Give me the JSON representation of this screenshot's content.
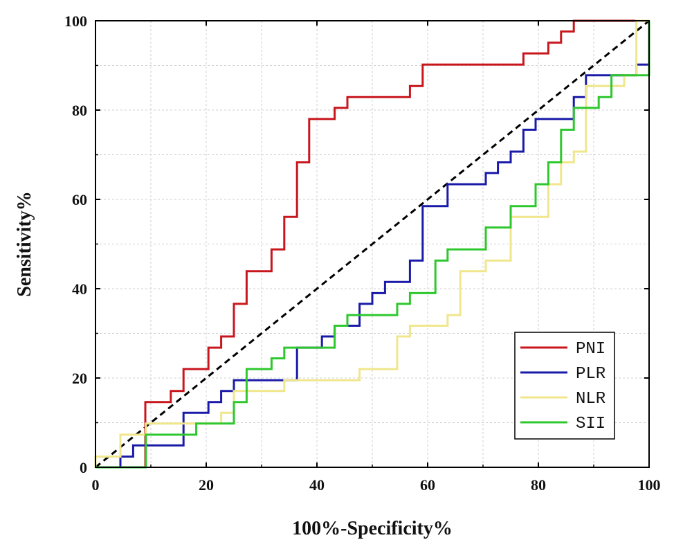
{
  "chart_data": {
    "type": "line",
    "title": "",
    "xlabel": "100%-Specificity%",
    "ylabel": "Sensitivity%",
    "xlim": [
      0,
      100
    ],
    "ylim": [
      0,
      100
    ],
    "xticks": [
      0,
      20,
      40,
      60,
      80,
      100
    ],
    "yticks": [
      0,
      20,
      40,
      60,
      80,
      100
    ],
    "grid": true,
    "legend_position": "bottom-right",
    "reference_line": {
      "style": "dashed",
      "color": "#000000",
      "points": [
        [
          0,
          0
        ],
        [
          100,
          100
        ]
      ]
    },
    "series": [
      {
        "name": "PNI",
        "color": "#c8161d",
        "points": [
          [
            0,
            0
          ],
          [
            9,
            0
          ],
          [
            9,
            14.6
          ],
          [
            13.6,
            14.6
          ],
          [
            13.6,
            17.1
          ],
          [
            15.9,
            17.1
          ],
          [
            15.9,
            22
          ],
          [
            20.4,
            22
          ],
          [
            20.4,
            26.8
          ],
          [
            22.7,
            26.8
          ],
          [
            22.7,
            29.3
          ],
          [
            25,
            29.3
          ],
          [
            25,
            36.6
          ],
          [
            27.3,
            36.6
          ],
          [
            27.3,
            43.9
          ],
          [
            31.8,
            43.9
          ],
          [
            31.8,
            48.8
          ],
          [
            34.1,
            48.8
          ],
          [
            34.1,
            56.1
          ],
          [
            36.4,
            56.1
          ],
          [
            36.4,
            68.3
          ],
          [
            38.6,
            68.3
          ],
          [
            38.6,
            78
          ],
          [
            43.2,
            78
          ],
          [
            43.2,
            80.5
          ],
          [
            45.5,
            80.5
          ],
          [
            45.5,
            82.9
          ],
          [
            56.8,
            82.9
          ],
          [
            56.8,
            85.4
          ],
          [
            59.1,
            85.4
          ],
          [
            59.1,
            90.2
          ],
          [
            77.3,
            90.2
          ],
          [
            77.3,
            92.7
          ],
          [
            81.8,
            92.7
          ],
          [
            81.8,
            95.1
          ],
          [
            84.1,
            95.1
          ],
          [
            84.1,
            97.6
          ],
          [
            86.4,
            97.6
          ],
          [
            86.4,
            100
          ],
          [
            100,
            100
          ]
        ]
      },
      {
        "name": "PLR",
        "color": "#1a1aa8",
        "points": [
          [
            0,
            0
          ],
          [
            4.5,
            0
          ],
          [
            4.5,
            2.4
          ],
          [
            6.8,
            2.4
          ],
          [
            6.8,
            4.9
          ],
          [
            15.9,
            4.9
          ],
          [
            15.9,
            12.2
          ],
          [
            20.4,
            12.2
          ],
          [
            20.4,
            14.6
          ],
          [
            22.7,
            14.6
          ],
          [
            22.7,
            17.1
          ],
          [
            25,
            17.1
          ],
          [
            25,
            19.5
          ],
          [
            36.4,
            19.5
          ],
          [
            36.4,
            26.8
          ],
          [
            40.9,
            26.8
          ],
          [
            40.9,
            29.3
          ],
          [
            43.2,
            29.3
          ],
          [
            43.2,
            31.7
          ],
          [
            47.7,
            31.7
          ],
          [
            47.7,
            36.6
          ],
          [
            50,
            36.6
          ],
          [
            50,
            39
          ],
          [
            52.3,
            39
          ],
          [
            52.3,
            41.5
          ],
          [
            56.8,
            41.5
          ],
          [
            56.8,
            46.3
          ],
          [
            59.1,
            46.3
          ],
          [
            59.1,
            58.5
          ],
          [
            63.6,
            58.5
          ],
          [
            63.6,
            63.4
          ],
          [
            70.5,
            63.4
          ],
          [
            70.5,
            65.9
          ],
          [
            72.7,
            65.9
          ],
          [
            72.7,
            68.3
          ],
          [
            75,
            68.3
          ],
          [
            75,
            70.7
          ],
          [
            77.3,
            70.7
          ],
          [
            77.3,
            75.6
          ],
          [
            79.5,
            75.6
          ],
          [
            79.5,
            78
          ],
          [
            86.4,
            78
          ],
          [
            86.4,
            82.9
          ],
          [
            88.6,
            82.9
          ],
          [
            88.6,
            87.8
          ],
          [
            97.7,
            87.8
          ],
          [
            97.7,
            90.2
          ],
          [
            100,
            90.2
          ],
          [
            100,
            100
          ]
        ]
      },
      {
        "name": "NLR",
        "color": "#f0e68c",
        "points": [
          [
            0,
            0
          ],
          [
            0,
            2.4
          ],
          [
            4.5,
            2.4
          ],
          [
            4.5,
            7.3
          ],
          [
            9.1,
            7.3
          ],
          [
            9.1,
            9.8
          ],
          [
            22.7,
            9.8
          ],
          [
            22.7,
            12.2
          ],
          [
            25,
            12.2
          ],
          [
            25,
            17.1
          ],
          [
            34.1,
            17.1
          ],
          [
            34.1,
            19.5
          ],
          [
            47.7,
            19.5
          ],
          [
            47.7,
            22
          ],
          [
            54.5,
            22
          ],
          [
            54.5,
            29.3
          ],
          [
            56.8,
            29.3
          ],
          [
            56.8,
            31.7
          ],
          [
            63.6,
            31.7
          ],
          [
            63.6,
            34.1
          ],
          [
            65.9,
            34.1
          ],
          [
            65.9,
            43.9
          ],
          [
            70.5,
            43.9
          ],
          [
            70.5,
            46.3
          ],
          [
            75,
            46.3
          ],
          [
            75,
            56.1
          ],
          [
            81.8,
            56.1
          ],
          [
            81.8,
            63.4
          ],
          [
            84.1,
            63.4
          ],
          [
            84.1,
            68.3
          ],
          [
            86.4,
            68.3
          ],
          [
            86.4,
            70.7
          ],
          [
            88.6,
            70.7
          ],
          [
            88.6,
            85.4
          ],
          [
            95.5,
            85.4
          ],
          [
            95.5,
            87.8
          ],
          [
            97.7,
            87.8
          ],
          [
            97.7,
            100
          ],
          [
            100,
            100
          ]
        ]
      },
      {
        "name": "SII",
        "color": "#2ec82e",
        "points": [
          [
            0,
            0
          ],
          [
            9.1,
            0
          ],
          [
            9.1,
            7.3
          ],
          [
            18.2,
            7.3
          ],
          [
            18.2,
            9.8
          ],
          [
            25,
            9.8
          ],
          [
            25,
            14.6
          ],
          [
            27.3,
            14.6
          ],
          [
            27.3,
            22
          ],
          [
            31.8,
            22
          ],
          [
            31.8,
            24.4
          ],
          [
            34.1,
            24.4
          ],
          [
            34.1,
            26.8
          ],
          [
            43.2,
            26.8
          ],
          [
            43.2,
            31.7
          ],
          [
            45.5,
            31.7
          ],
          [
            45.5,
            34.1
          ],
          [
            54.5,
            34.1
          ],
          [
            54.5,
            36.6
          ],
          [
            56.8,
            36.6
          ],
          [
            56.8,
            39
          ],
          [
            61.4,
            39
          ],
          [
            61.4,
            46.3
          ],
          [
            63.6,
            46.3
          ],
          [
            63.6,
            48.8
          ],
          [
            70.5,
            48.8
          ],
          [
            70.5,
            53.7
          ],
          [
            75,
            53.7
          ],
          [
            75,
            58.5
          ],
          [
            79.5,
            58.5
          ],
          [
            79.5,
            63.4
          ],
          [
            81.8,
            63.4
          ],
          [
            81.8,
            68.3
          ],
          [
            84.1,
            68.3
          ],
          [
            84.1,
            75.6
          ],
          [
            86.4,
            75.6
          ],
          [
            86.4,
            80.5
          ],
          [
            90.9,
            80.5
          ],
          [
            90.9,
            82.9
          ],
          [
            93.2,
            82.9
          ],
          [
            93.2,
            87.8
          ],
          [
            100,
            87.8
          ],
          [
            100,
            100
          ]
        ]
      }
    ]
  }
}
